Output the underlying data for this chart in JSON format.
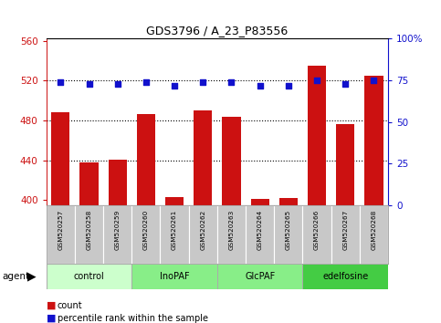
{
  "title": "GDS3796 / A_23_P83556",
  "samples": [
    "GSM520257",
    "GSM520258",
    "GSM520259",
    "GSM520260",
    "GSM520261",
    "GSM520262",
    "GSM520263",
    "GSM520264",
    "GSM520265",
    "GSM520266",
    "GSM520267",
    "GSM520268"
  ],
  "counts": [
    488,
    438,
    441,
    486,
    403,
    490,
    484,
    401,
    402,
    535,
    476,
    525
  ],
  "percentiles": [
    74,
    73,
    73,
    74,
    72,
    74,
    74,
    72,
    72,
    75,
    73,
    75
  ],
  "groups": [
    {
      "label": "control",
      "start": 0,
      "end": 3,
      "color": "#ccffcc"
    },
    {
      "label": "InoPAF",
      "start": 3,
      "end": 6,
      "color": "#88ee88"
    },
    {
      "label": "GlcPAF",
      "start": 6,
      "end": 9,
      "color": "#88ee88"
    },
    {
      "label": "edelfosine",
      "start": 9,
      "end": 12,
      "color": "#44cc44"
    }
  ],
  "ylim_left": [
    395,
    562
  ],
  "ylim_right": [
    0,
    100
  ],
  "yticks_left": [
    400,
    440,
    480,
    520,
    560
  ],
  "yticks_right": [
    0,
    25,
    50,
    75,
    100
  ],
  "bar_color": "#cc1111",
  "dot_color": "#1111cc",
  "bar_width": 0.65,
  "sample_bg_color": "#c8c8c8",
  "plot_bg_color": "#ffffff",
  "fig_bg_color": "#ffffff"
}
